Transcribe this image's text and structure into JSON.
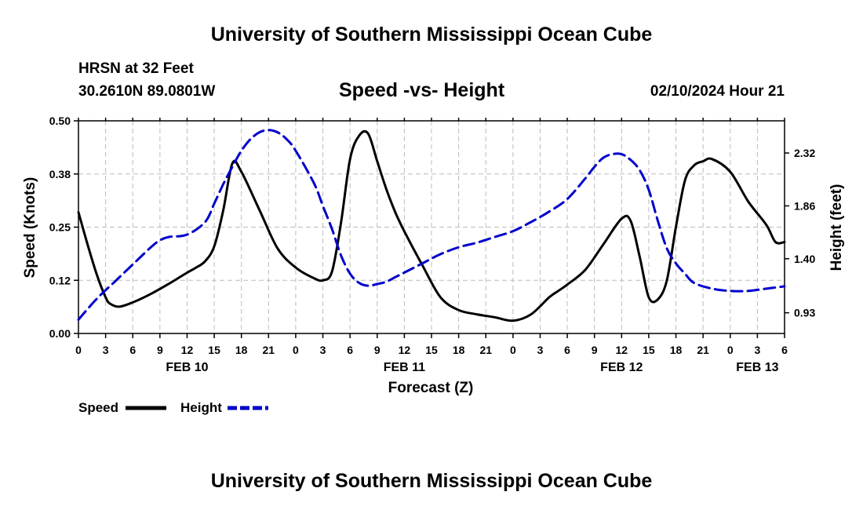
{
  "header": {
    "title": "University of Southern Mississippi Ocean Cube",
    "station": "HRSN at 32 Feet",
    "coords": "30.2610N  89.0801W",
    "chart_title": "Speed -vs- Height",
    "timestamp": "02/10/2024 Hour 21"
  },
  "footer": {
    "title": "University of Southern Mississippi Ocean Cube"
  },
  "colors": {
    "speed": "#000000",
    "height": "#0000cc",
    "grid": "#bbbbbb"
  },
  "chart_data": {
    "type": "line",
    "title": "Speed -vs- Height",
    "xlabel": "Forecast (Z)",
    "ylabel_left": "Speed (Knots)",
    "ylabel_right": "Height (feet)",
    "x_unit": "hours since FEB 10 00Z",
    "xlim": [
      0,
      78
    ],
    "ylim_left": [
      0,
      0.5
    ],
    "ylim_right": [
      0.75,
      2.6
    ],
    "x_ticks": [
      0,
      3,
      6,
      9,
      12,
      15,
      18,
      21,
      24,
      27,
      30,
      33,
      36,
      39,
      42,
      45,
      48,
      51,
      54,
      57,
      60,
      63,
      66,
      69,
      72,
      75,
      78
    ],
    "x_tick_labels": [
      "0",
      "3",
      "6",
      "9",
      "12",
      "15",
      "18",
      "21",
      "0",
      "3",
      "6",
      "9",
      "12",
      "15",
      "18",
      "21",
      "0",
      "3",
      "6",
      "9",
      "12",
      "15",
      "18",
      "21",
      "0",
      "3",
      "6"
    ],
    "date_labels": [
      {
        "x": 12,
        "label": "FEB 10"
      },
      {
        "x": 36,
        "label": "FEB 11"
      },
      {
        "x": 60,
        "label": "FEB 12"
      },
      {
        "x": 75,
        "label": "FEB 13"
      }
    ],
    "y_left_ticks": [
      0.0,
      0.125,
      0.25,
      0.375,
      0.5
    ],
    "y_left_tick_labels": [
      "0.00",
      "0.12",
      "0.25",
      "0.38",
      "0.50"
    ],
    "y_right_ticks": [
      0.93,
      1.4,
      1.86,
      2.32
    ],
    "y_right_tick_labels": [
      "0.93",
      "1.40",
      "1.86",
      "2.32"
    ],
    "grid": true,
    "legend": [
      {
        "name": "Speed",
        "style": "solid"
      },
      {
        "name": "Height",
        "style": "dashed"
      }
    ],
    "series": [
      {
        "name": "Speed",
        "axis": "left",
        "style": "solid",
        "x": [
          0,
          1,
          2,
          3,
          3.5,
          4.5,
          6,
          8,
          10,
          12,
          13,
          14,
          15,
          16,
          17,
          18,
          20,
          22,
          24,
          26,
          27,
          28,
          29,
          30,
          31,
          32,
          33,
          34,
          35,
          36,
          38,
          40,
          42,
          44,
          46,
          48,
          50,
          52,
          53,
          54,
          56,
          58,
          60,
          61,
          62,
          63,
          64,
          65,
          66,
          67,
          68,
          69,
          70,
          72,
          74,
          76,
          77,
          78
        ],
        "y": [
          0.285,
          0.21,
          0.14,
          0.085,
          0.07,
          0.063,
          0.073,
          0.093,
          0.117,
          0.143,
          0.155,
          0.17,
          0.205,
          0.29,
          0.4,
          0.38,
          0.29,
          0.2,
          0.155,
          0.13,
          0.125,
          0.145,
          0.26,
          0.41,
          0.465,
          0.47,
          0.405,
          0.34,
          0.285,
          0.24,
          0.16,
          0.085,
          0.055,
          0.045,
          0.038,
          0.03,
          0.045,
          0.085,
          0.1,
          0.115,
          0.15,
          0.21,
          0.27,
          0.265,
          0.18,
          0.085,
          0.08,
          0.125,
          0.25,
          0.36,
          0.395,
          0.405,
          0.41,
          0.38,
          0.31,
          0.255,
          0.215,
          0.215
        ]
      },
      {
        "name": "Height",
        "axis": "right",
        "style": "dashed",
        "x": [
          0,
          2,
          4,
          6,
          8,
          9,
          10,
          12,
          14,
          15,
          16,
          17,
          18,
          19,
          20,
          21,
          22,
          23,
          24,
          26,
          27,
          28,
          29,
          30,
          31,
          32,
          33,
          34,
          35,
          36,
          38,
          40,
          42,
          44,
          46,
          48,
          50,
          52,
          54,
          56,
          57,
          58,
          59,
          60,
          61,
          62,
          63,
          64,
          65,
          66,
          67,
          68,
          70,
          72,
          74,
          76,
          78
        ],
        "y": [
          0.87,
          1.05,
          1.2,
          1.35,
          1.5,
          1.56,
          1.59,
          1.61,
          1.72,
          1.88,
          2.05,
          2.2,
          2.34,
          2.44,
          2.5,
          2.52,
          2.5,
          2.44,
          2.34,
          2.06,
          1.86,
          1.66,
          1.43,
          1.27,
          1.19,
          1.165,
          1.18,
          1.2,
          1.24,
          1.28,
          1.36,
          1.44,
          1.5,
          1.54,
          1.59,
          1.64,
          1.72,
          1.81,
          1.92,
          2.1,
          2.2,
          2.28,
          2.31,
          2.31,
          2.26,
          2.17,
          2.0,
          1.73,
          1.49,
          1.36,
          1.27,
          1.19,
          1.14,
          1.12,
          1.12,
          1.14,
          1.16
        ]
      }
    ]
  }
}
